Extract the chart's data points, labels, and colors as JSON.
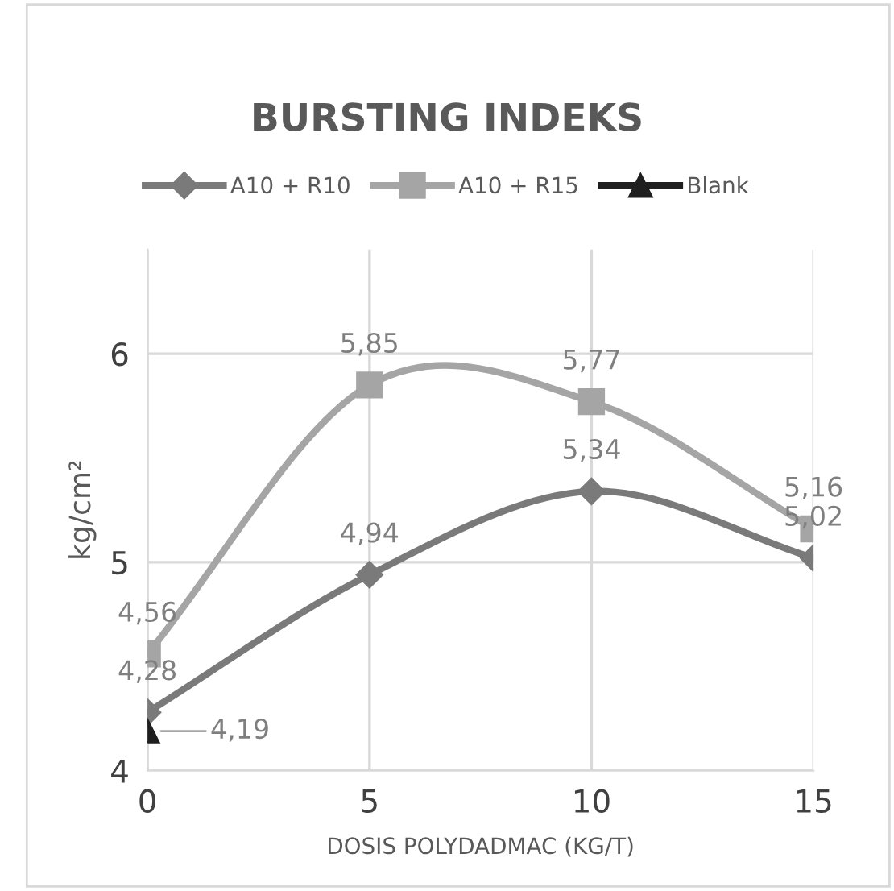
{
  "chart_data": {
    "type": "line",
    "title": "BURSTING INDEKS",
    "xlabel": "DOSIS POLYDADMAC (KG/T)",
    "ylabel": "kg/cm²",
    "x": [
      0,
      5,
      10,
      15
    ],
    "xlim": [
      0,
      15
    ],
    "xticks": [
      0,
      5,
      10,
      15
    ],
    "ylim": [
      4,
      6.5
    ],
    "yticks": [
      4,
      5,
      6
    ],
    "grid": true,
    "legend": "top",
    "series": [
      {
        "name": "A10 + R10",
        "color": "#7a7a7a",
        "marker": "diamond",
        "values": [
          4.28,
          4.94,
          5.34,
          5.02
        ],
        "value_labels": [
          "4,28",
          "4,94",
          "5,34",
          "5,02"
        ]
      },
      {
        "name": "A10 + R15",
        "color": "#a5a5a5",
        "marker": "square",
        "values": [
          4.56,
          5.85,
          5.77,
          5.16
        ],
        "value_labels": [
          "4,56",
          "5,85",
          "5,77",
          "5,16"
        ]
      },
      {
        "name": "Blank",
        "color": "#1f1f1f",
        "marker": "triangle",
        "values": [
          4.19,
          null,
          null,
          null
        ],
        "value_labels": [
          "4,19",
          null,
          null,
          null
        ]
      }
    ]
  }
}
